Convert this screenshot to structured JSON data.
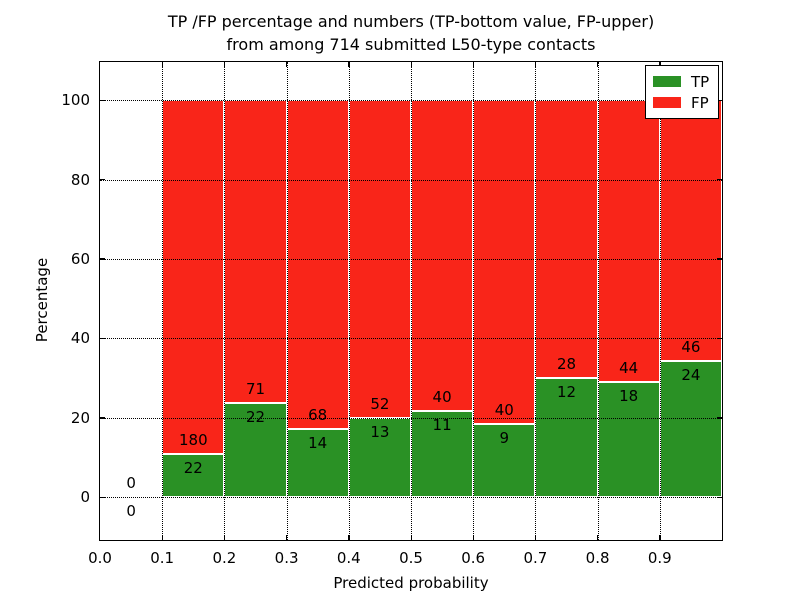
{
  "title": {
    "line1": "TP /FP percentage and numbers (TP-bottom value, FP-upper)",
    "line2": "from among 714 submitted L50-type contacts"
  },
  "axes": {
    "xlabel": "Predicted probability",
    "ylabel": "Percentage",
    "xtick_labels": [
      "0.0",
      "0.1",
      "0.2",
      "0.3",
      "0.4",
      "0.5",
      "0.6",
      "0.7",
      "0.8",
      "0.9"
    ],
    "xtick_values": [
      0.0,
      0.1,
      0.2,
      0.3,
      0.4,
      0.5,
      0.6,
      0.7,
      0.8,
      0.9
    ],
    "ytick_labels": [
      "0",
      "20",
      "40",
      "60",
      "80",
      "100"
    ],
    "ytick_values": [
      0,
      20,
      40,
      60,
      80,
      100
    ]
  },
  "legend": {
    "items": [
      {
        "label": "TP",
        "color": "#2a9125"
      },
      {
        "label": "FP",
        "color": "#f92519"
      }
    ]
  },
  "chart_data": {
    "type": "bar",
    "stacked": true,
    "title": "TP /FP percentage and numbers (TP-bottom value, FP-upper) from among 714 submitted L50-type contacts",
    "xlabel": "Predicted probability",
    "ylabel": "Percentage",
    "total_contacts": 714,
    "grid": true,
    "legend_position": "upper right",
    "xlim": [
      0.0,
      1.0
    ],
    "ylim": [
      -10.8,
      109.6
    ],
    "bin_edges": [
      0.0,
      0.1,
      0.2,
      0.3,
      0.4,
      0.5,
      0.6,
      0.7,
      0.8,
      0.9,
      1.0
    ],
    "categories": [
      "0.0-0.1",
      "0.1-0.2",
      "0.2-0.3",
      "0.3-0.4",
      "0.4-0.5",
      "0.5-0.6",
      "0.6-0.7",
      "0.7-0.8",
      "0.8-0.9",
      "0.9-1.0"
    ],
    "series": [
      {
        "name": "TP",
        "color": "#2a9125",
        "counts": [
          0,
          22,
          22,
          14,
          13,
          11,
          9,
          12,
          18,
          24
        ],
        "percentages": [
          0,
          10.89,
          23.66,
          17.07,
          20.0,
          21.57,
          18.37,
          30.0,
          29.03,
          34.29
        ]
      },
      {
        "name": "FP",
        "color": "#f92519",
        "counts": [
          0,
          180,
          71,
          68,
          52,
          40,
          40,
          28,
          44,
          46
        ],
        "percentages": [
          0,
          89.11,
          76.34,
          82.93,
          80.0,
          78.43,
          81.63,
          70.0,
          70.97,
          65.71
        ]
      }
    ]
  }
}
